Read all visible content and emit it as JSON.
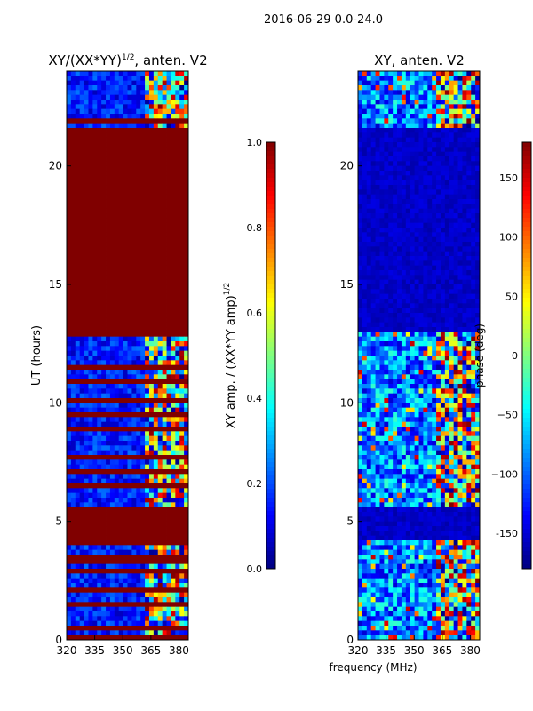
{
  "chart_data": {
    "type": "heatmap",
    "suptitle": "2016-06-29 0.0-24.0",
    "xlabel": "frequency (MHz)",
    "panels": [
      {
        "id": "ratio",
        "title": "XY/(XX*YY)",
        "title_sup": "1/2",
        "title_suffix": ", anten. V2",
        "ylabel": "UT (hours)",
        "xlim": [
          320,
          385
        ],
        "ylim": [
          0,
          24
        ],
        "xticks": [
          "320",
          "335",
          "350",
          "365",
          "380"
        ],
        "yticks": [
          "0",
          "5",
          "10",
          "15",
          "20"
        ],
        "colorbar": {
          "label": "XY amp. / (XX*YY amp)",
          "label_sup": "1/2",
          "range": [
            0.0,
            1.0
          ],
          "ticks": [
            "0.0",
            "0.2",
            "0.4",
            "0.6",
            "0.8",
            "1.0"
          ]
        },
        "saturated_blocks_hours": [
          [
            4.3,
            5.5
          ],
          [
            13.0,
            21.5
          ],
          [
            6.9,
            7.2
          ]
        ]
      },
      {
        "id": "phase",
        "title": "XY, anten. V2",
        "ylabel": "phase (deg)",
        "xlim": [
          320,
          385
        ],
        "ylim": [
          0,
          24
        ],
        "xticks": [
          "320",
          "335",
          "350",
          "365",
          "380"
        ],
        "yticks": [
          "0",
          "5",
          "10",
          "15",
          "20"
        ],
        "colorbar": {
          "label": "",
          "range": [
            -180,
            180
          ],
          "ticks": [
            "-150",
            "−100",
            "−50",
            "0",
            "50",
            "100",
            "150"
          ]
        },
        "low_phase_blocks_hours": [
          [
            4.3,
            5.5
          ],
          [
            13.0,
            21.5
          ]
        ]
      }
    ]
  }
}
